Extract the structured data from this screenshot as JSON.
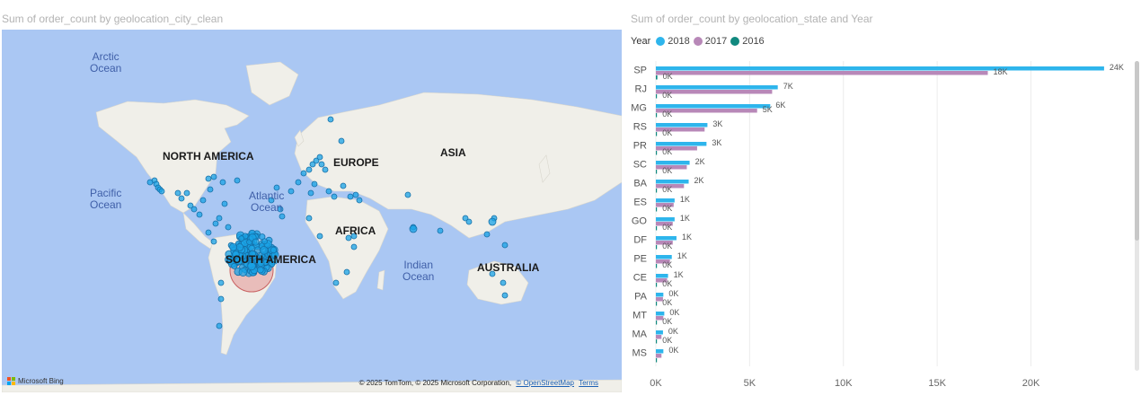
{
  "map": {
    "title": "Sum of order_count by geolocation_city_clean",
    "continents": [
      {
        "key": "north-america",
        "label": "NORTH AMERICA"
      },
      {
        "key": "europe",
        "label": "EUROPE"
      },
      {
        "key": "asia",
        "label": "ASIA"
      },
      {
        "key": "africa",
        "label": "AFRICA"
      },
      {
        "key": "south-america",
        "label": "SOUTH AMERICA"
      },
      {
        "key": "australia",
        "label": "AUSTRALIA"
      }
    ],
    "oceans": [
      {
        "key": "arctic",
        "label": "Arctic\nOcean"
      },
      {
        "key": "pacific",
        "label": "Pacific\nOcean"
      },
      {
        "key": "atlantic",
        "label": "Atlantic\nOcean"
      },
      {
        "key": "indian",
        "label": "Indian\nOcean"
      }
    ],
    "bing_logo": "Microsoft Bing",
    "attribution": "© 2025 TomTom, © 2025 Microsoft Corporation,",
    "osm_link": "© OpenStreetMap",
    "terms_link": "Terms",
    "colors": {
      "water": "#aac7f3",
      "land": "#f0efe9",
      "bubble": "#1aa3e6",
      "bubble_stroke": "#1670a8",
      "highlight": "#e08080"
    }
  },
  "bars": {
    "title": "Sum of order_count by geolocation_state and Year",
    "legend_title": "Year",
    "legend": [
      {
        "name": "2018",
        "color": "#2eb5ec"
      },
      {
        "name": "2017",
        "color": "#b888b8"
      },
      {
        "name": "2016",
        "color": "#11897f"
      }
    ]
  },
  "chart_data": {
    "type": "bar",
    "orientation": "horizontal",
    "title": "Sum of order_count by geolocation_state and Year",
    "xlabel": "",
    "ylabel": "",
    "xlim": [
      0,
      24000
    ],
    "x_ticks": [
      "0K",
      "5K",
      "10K",
      "15K",
      "20K"
    ],
    "categories": [
      "SP",
      "RJ",
      "MG",
      "RS",
      "PR",
      "SC",
      "BA",
      "ES",
      "GO",
      "DF",
      "PE",
      "CE",
      "PA",
      "MT",
      "MA",
      "MS"
    ],
    "series": [
      {
        "name": "2018",
        "color": "#2eb5ec",
        "values": [
          23900,
          6500,
          6100,
          2750,
          2700,
          1800,
          1750,
          1000,
          1000,
          1100,
          850,
          650,
          400,
          450,
          380,
          400
        ],
        "labels": [
          "24K",
          "7K",
          "6K",
          "3K",
          "3K",
          "2K",
          "2K",
          "1K",
          "1K",
          "1K",
          "1K",
          "1K",
          "0K",
          "0K",
          "0K",
          "0K"
        ]
      },
      {
        "name": "2017",
        "color": "#b888b8",
        "values": [
          17700,
          6200,
          5400,
          2600,
          2200,
          1650,
          1500,
          950,
          900,
          900,
          750,
          600,
          380,
          400,
          300,
          300
        ],
        "labels": [
          "18K",
          "",
          "5K",
          "",
          "",
          "",
          "",
          "",
          "",
          "",
          "",
          "",
          "",
          "",
          "",
          ""
        ]
      },
      {
        "name": "2016",
        "color": "#11897f",
        "values": [
          80,
          20,
          20,
          10,
          10,
          5,
          5,
          5,
          5,
          5,
          5,
          5,
          2,
          2,
          2,
          2
        ],
        "labels": [
          "0K",
          "0K",
          "0K",
          "0K",
          "0K",
          "0K",
          "0K",
          "0K",
          "0K",
          "0K",
          "0K",
          "0K",
          "0K",
          "0K",
          "0K",
          ""
        ]
      }
    ],
    "grid": true,
    "legend_position": "top-left"
  }
}
